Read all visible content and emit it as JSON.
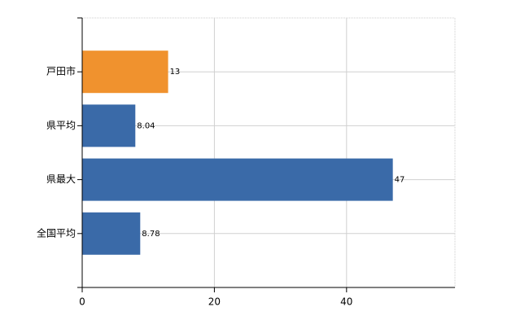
{
  "chart_data": {
    "type": "bar",
    "orientation": "horizontal",
    "categories": [
      "戸田市",
      "県平均",
      "県最大",
      "全国平均"
    ],
    "values": [
      13,
      8.04,
      47,
      8.78
    ],
    "colors": [
      "#f0922e",
      "#3a6aa8",
      "#3a6aa8",
      "#3a6aa8"
    ],
    "xlim": [
      0,
      56.4
    ],
    "xticks": [
      0,
      20,
      40
    ],
    "grid": true
  }
}
